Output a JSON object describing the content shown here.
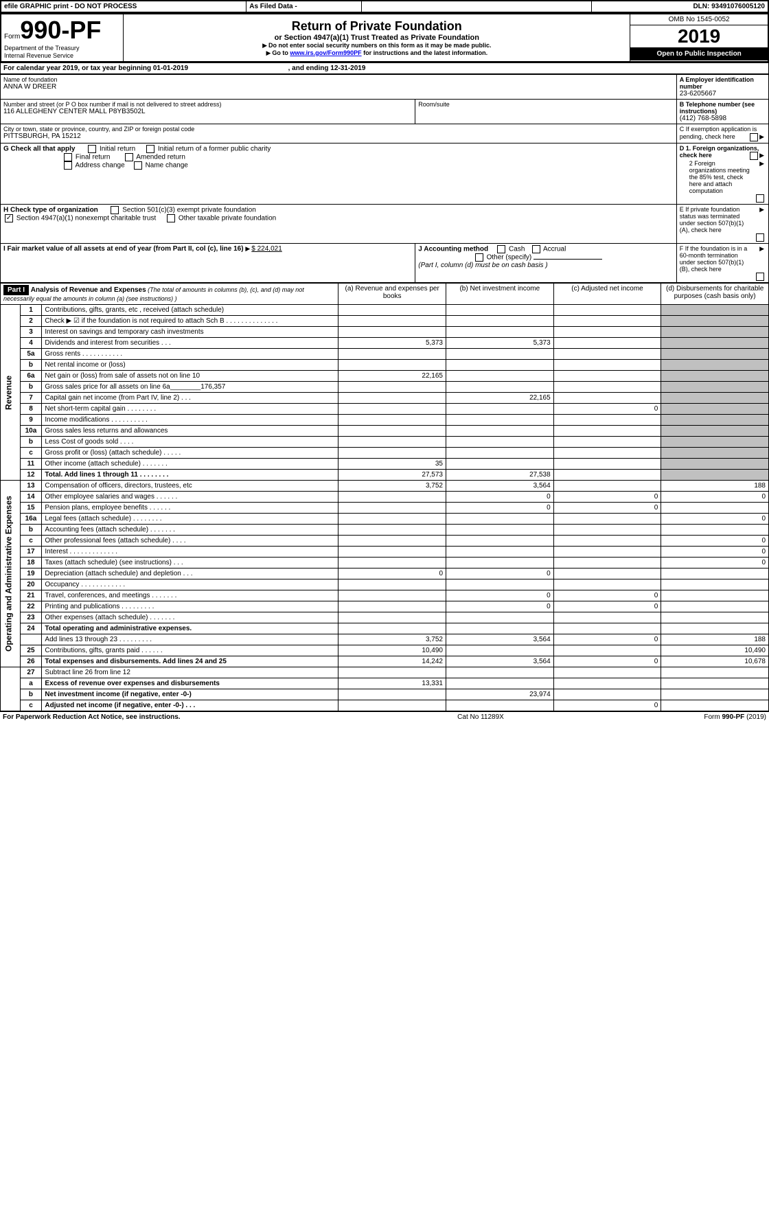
{
  "topbar": {
    "efile": "efile GRAPHIC print - DO NOT PROCESS",
    "asfiled": "As Filed Data -",
    "dln_label": "DLN:",
    "dln": "93491076005120"
  },
  "header": {
    "form_prefix": "Form",
    "form_number": "990-PF",
    "dept": "Department of the Treasury",
    "irs": "Internal Revenue Service",
    "title": "Return of Private Foundation",
    "subtitle": "or Section 4947(a)(1) Trust Treated as Private Foundation",
    "warn1": "Do not enter social security numbers on this form as it may be made public.",
    "warn2_pre": "Go to ",
    "warn2_link": "www.irs.gov/Form990PF",
    "warn2_post": " for instructions and the latest information.",
    "omb": "OMB No 1545-0052",
    "year": "2019",
    "open": "Open to Public Inspection"
  },
  "cal": {
    "text_a": "For calendar year 2019, or tax year beginning ",
    "begin": "01-01-2019",
    "text_b": ", and ending ",
    "end": "12-31-2019"
  },
  "id": {
    "name_label": "Name of foundation",
    "name": "ANNA W DREER",
    "addr_label": "Number and street (or P O  box number if mail is not delivered to street address)",
    "addr": "116 ALLEGHENY CENTER MALL P8YB3502L",
    "room_label": "Room/suite",
    "city_label": "City or town, state or province, country, and ZIP or foreign postal code",
    "city": "PITTSBURGH, PA  15212",
    "A_label": "A Employer identification number",
    "A": "23-6205667",
    "B_label": "B Telephone number (see instructions)",
    "B": "(412) 768-5898",
    "C": "C If exemption application is pending, check here",
    "D1": "D 1. Foreign organizations, check here",
    "D2": "2 Foreign organizations meeting the 85% test, check here and attach computation",
    "E": "E  If private foundation status was terminated under section 507(b)(1)(A), check here",
    "F": "F  If the foundation is in a 60-month termination under section 507(b)(1)(B), check here"
  },
  "G": {
    "label": "G Check all that apply",
    "opts": [
      "Initial return",
      "Initial return of a former public charity",
      "Final return",
      "Amended return",
      "Address change",
      "Name change"
    ]
  },
  "H": {
    "label": "H Check type of organization",
    "opt1": "Section 501(c)(3) exempt private foundation",
    "opt2": "Section 4947(a)(1) nonexempt charitable trust",
    "opt3": "Other taxable private foundation"
  },
  "I": {
    "label": "I Fair market value of all assets at end of year (from Part II, col  (c), line 16)",
    "amount": "$  224,021"
  },
  "J": {
    "label": "J Accounting method",
    "cash": "Cash",
    "accrual": "Accrual",
    "other": "Other (specify)",
    "note": "(Part I, column (d) must be on cash basis )"
  },
  "part1": {
    "header": "Part I",
    "title": "Analysis of Revenue and Expenses",
    "title_note": " (The total of amounts in columns (b), (c), and (d) may not necessarily equal the amounts in column (a) (see instructions) )",
    "col_a": "(a) Revenue and expenses per books",
    "col_b": "(b) Net investment income",
    "col_c": "(c) Adjusted net income",
    "col_d": "(d) Disbursements for charitable purposes (cash basis only)",
    "revenue_label": "Revenue",
    "expenses_label": "Operating and Administrative Expenses"
  },
  "rows": [
    {
      "n": "1",
      "t": "Contributions, gifts, grants, etc , received (attach schedule)"
    },
    {
      "n": "2",
      "t": "Check ▶ ☑ if the foundation is not required to attach Sch  B   . . . . . . . . . . . . . ."
    },
    {
      "n": "3",
      "t": "Interest on savings and temporary cash investments"
    },
    {
      "n": "4",
      "t": "Dividends and interest from securities   . . .",
      "a": "5,373",
      "b": "5,373"
    },
    {
      "n": "5a",
      "t": "Gross rents   . . . . . . . . . . ."
    },
    {
      "n": "b",
      "t": "Net rental income or (loss)  "
    },
    {
      "n": "6a",
      "t": "Net gain or (loss) from sale of assets not on line 10",
      "a": "22,165"
    },
    {
      "n": "b",
      "t": "Gross sales price for all assets on line 6a________176,357"
    },
    {
      "n": "7",
      "t": "Capital gain net income (from Part IV, line 2)   . . .",
      "b": "22,165"
    },
    {
      "n": "8",
      "t": "Net short-term capital gain   . . . . . . . .",
      "c": "0"
    },
    {
      "n": "9",
      "t": "Income modifications . . . . . . . . . ."
    },
    {
      "n": "10a",
      "t": "Gross sales less returns and allowances"
    },
    {
      "n": "b",
      "t": "Less  Cost of goods sold   . . . ."
    },
    {
      "n": "c",
      "t": "Gross profit or (loss) (attach schedule)   . . . . ."
    },
    {
      "n": "11",
      "t": "Other income (attach schedule)   . . . . . . .",
      "a": "35",
      "icon": true
    },
    {
      "n": "12",
      "t": "Total. Add lines 1 through 11   . . . . . . . .",
      "a": "27,573",
      "b": "27,538",
      "bold": true
    },
    {
      "n": "13",
      "t": "Compensation of officers, directors, trustees, etc",
      "a": "3,752",
      "b": "3,564",
      "c": "",
      "d": "188"
    },
    {
      "n": "14",
      "t": "Other employee salaries and wages   . . . . . .",
      "b": "0",
      "c": "0",
      "d": "0"
    },
    {
      "n": "15",
      "t": "Pension plans, employee benefits   . . . . . .",
      "b": "0",
      "c": "0"
    },
    {
      "n": "16a",
      "t": "Legal fees (attach schedule) . . . . . . . .",
      "d": "0"
    },
    {
      "n": "b",
      "t": "Accounting fees (attach schedule) . . . . . . ."
    },
    {
      "n": "c",
      "t": "Other professional fees (attach schedule)   . . . .",
      "d": "0"
    },
    {
      "n": "17",
      "t": "Interest . . . . . . . . . . . . .",
      "d": "0"
    },
    {
      "n": "18",
      "t": "Taxes (attach schedule) (see instructions)   . . .",
      "d": "0"
    },
    {
      "n": "19",
      "t": "Depreciation (attach schedule) and depletion   . . .",
      "a": "0",
      "b": "0"
    },
    {
      "n": "20",
      "t": "Occupancy   . . . . . . . . . . . ."
    },
    {
      "n": "21",
      "t": "Travel, conferences, and meetings . . . . . . .",
      "b": "0",
      "c": "0"
    },
    {
      "n": "22",
      "t": "Printing and publications . . . . . . . . .",
      "b": "0",
      "c": "0"
    },
    {
      "n": "23",
      "t": "Other expenses (attach schedule) . . . . . . ."
    },
    {
      "n": "24",
      "t": "Total operating and administrative expenses.",
      "bold": true
    },
    {
      "n": "",
      "t": "Add lines 13 through 23   . . . . . . . . .",
      "a": "3,752",
      "b": "3,564",
      "c": "0",
      "d": "188"
    },
    {
      "n": "25",
      "t": "Contributions, gifts, grants paid   . . . . . .",
      "a": "10,490",
      "d": "10,490"
    },
    {
      "n": "26",
      "t": "Total expenses and disbursements. Add lines 24 and 25",
      "a": "14,242",
      "b": "3,564",
      "c": "0",
      "d": "10,678",
      "bold": true
    },
    {
      "n": "27",
      "t": "Subtract line 26 from line 12"
    },
    {
      "n": "a",
      "t": "Excess of revenue over expenses and disbursements",
      "a": "13,331",
      "bold": true
    },
    {
      "n": "b",
      "t": "Net investment income (if negative, enter -0-)",
      "b": "23,974",
      "bold": true
    },
    {
      "n": "c",
      "t": "Adjusted net income (if negative, enter -0-)   . . .",
      "c": "0",
      "bold": true
    }
  ],
  "footer": {
    "left": "For Paperwork Reduction Act Notice, see instructions.",
    "center": "Cat  No  11289X",
    "right": "Form 990-PF (2019)"
  }
}
